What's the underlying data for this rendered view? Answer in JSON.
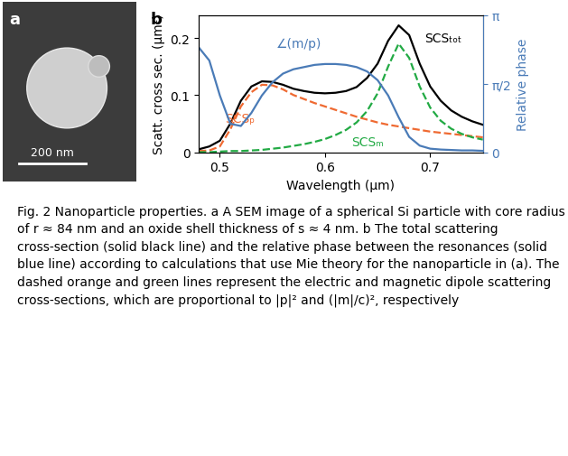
{
  "panel_a": {
    "label": "a",
    "scale_bar": "200 nm"
  },
  "panel_b": {
    "label": "b"
  },
  "chart_data": {
    "type": "line",
    "xlabel": "Wavelength (μm)",
    "ylabel": "Scatt. cross sec. (μm²)",
    "y2label": "Relative phase",
    "x": [
      0.48,
      0.49,
      0.5,
      0.51,
      0.52,
      0.53,
      0.54,
      0.55,
      0.56,
      0.57,
      0.58,
      0.59,
      0.6,
      0.61,
      0.62,
      0.63,
      0.64,
      0.65,
      0.66,
      0.67,
      0.68,
      0.69,
      0.7,
      0.71,
      0.72,
      0.73,
      0.74,
      0.75
    ],
    "series": [
      {
        "name": "SCSₜₒₜ",
        "color": "#000000",
        "line_style": "solid",
        "values": [
          0.005,
          0.01,
          0.02,
          0.05,
          0.09,
          0.115,
          0.124,
          0.123,
          0.118,
          0.111,
          0.107,
          0.104,
          0.103,
          0.104,
          0.107,
          0.114,
          0.13,
          0.155,
          0.195,
          0.222,
          0.205,
          0.155,
          0.115,
          0.09,
          0.073,
          0.062,
          0.054,
          0.048
        ]
      },
      {
        "name": "SCSₚ",
        "color": "#ef6a32",
        "line_style": "dashed",
        "values": [
          0.002,
          0.003,
          0.01,
          0.04,
          0.08,
          0.105,
          0.118,
          0.117,
          0.11,
          0.1,
          0.093,
          0.086,
          0.08,
          0.074,
          0.068,
          0.062,
          0.057,
          0.052,
          0.048,
          0.045,
          0.042,
          0.039,
          0.036,
          0.034,
          0.032,
          0.03,
          0.028,
          0.026
        ]
      },
      {
        "name": "SCSₘ",
        "color": "#22aa44",
        "line_style": "dashed",
        "values": [
          0.0,
          0.0,
          0.001,
          0.002,
          0.002,
          0.003,
          0.004,
          0.006,
          0.008,
          0.011,
          0.014,
          0.018,
          0.023,
          0.03,
          0.039,
          0.052,
          0.072,
          0.103,
          0.15,
          0.19,
          0.165,
          0.115,
          0.078,
          0.055,
          0.041,
          0.032,
          0.026,
          0.022
        ]
      },
      {
        "name": "∠(m/p)",
        "color": "#4a7bb7",
        "line_style": "solid",
        "axis": "y2",
        "values": [
          2.4,
          2.1,
          1.3,
          0.65,
          0.6,
          0.9,
          1.3,
          1.6,
          1.8,
          1.9,
          1.95,
          2.0,
          2.02,
          2.02,
          2.0,
          1.95,
          1.85,
          1.65,
          1.3,
          0.8,
          0.35,
          0.15,
          0.08,
          0.06,
          0.05,
          0.04,
          0.04,
          0.03
        ]
      }
    ],
    "xlim": [
      0.48,
      0.75
    ],
    "xticks": [
      0.5,
      0.6,
      0.7
    ],
    "ylim": [
      0,
      0.24
    ],
    "yticks": [
      0,
      0.1,
      0.2
    ],
    "y2lim": [
      0,
      3.14159
    ],
    "y2ticks": [
      0,
      {
        "value": 1.5708,
        "label": "π/2"
      },
      {
        "value": 3.14159,
        "label": "π"
      }
    ]
  },
  "caption": "Fig. 2 Nanoparticle properties. a A SEM image of a spherical Si particle with core radius of r ≈ 84 nm and an oxide shell thickness of s ≈ 4 nm. b The total scattering cross-section (solid black line) and the relative phase between the resonances (solid blue line) according to calculations that use Mie theory for the nanoparticle in (a). The dashed orange and green lines represent the electric and magnetic dipole scattering cross-sections, which are proportional to |p|² and (|m|/c)², respectively"
}
